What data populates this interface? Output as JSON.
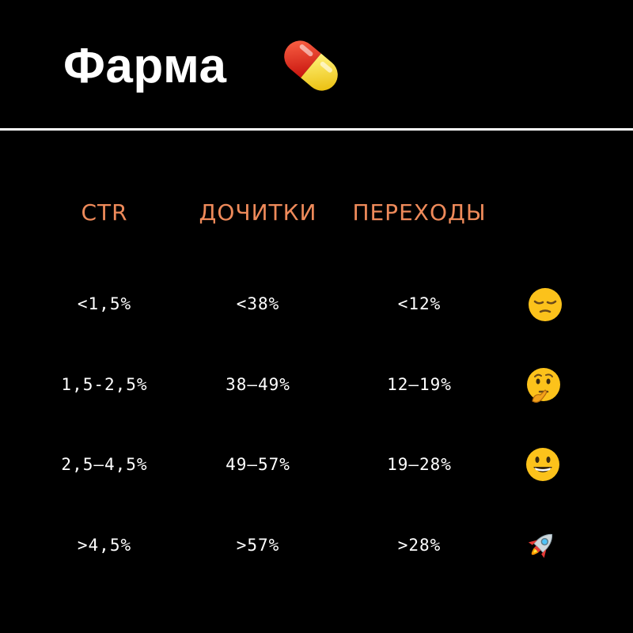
{
  "title": "Фарма",
  "icons": {
    "title_icon": "pill-icon"
  },
  "columns": [
    "CTR",
    "ДОЧИТКИ",
    "ПЕРЕХОДЫ"
  ],
  "rows": [
    {
      "ctr": "<1,5%",
      "reads": "<38%",
      "clicks": "<12%",
      "icon": "pensive-face-icon"
    },
    {
      "ctr": "1,5-2,5%",
      "reads": "38–49%",
      "clicks": "12–19%",
      "icon": "thinking-face-icon"
    },
    {
      "ctr": "2,5–4,5%",
      "reads": "49–57%",
      "clicks": "19–28%",
      "icon": "grinning-face-icon"
    },
    {
      "ctr": ">4,5%",
      "reads": ">57%",
      "clicks": ">28%",
      "icon": "rocket-icon"
    }
  ],
  "colors": {
    "background": "#000000",
    "header": "#ee8a5a",
    "text": "#ffffff",
    "divider": "#ffffff"
  }
}
